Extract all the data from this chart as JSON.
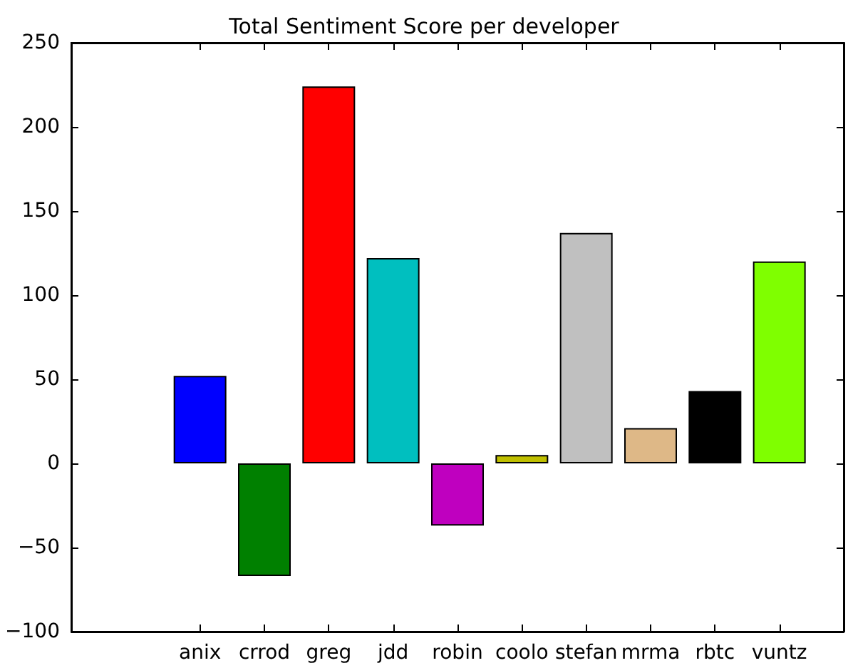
{
  "chart_data": {
    "type": "bar",
    "title": "Total Sentiment Score per developer",
    "categories": [
      null,
      null,
      "anix",
      "crrod",
      "greg",
      "jdd",
      "robin",
      "coolo",
      "stefan",
      "mrma",
      "rbtc",
      "vuntz",
      null
    ],
    "values": [
      null,
      null,
      52,
      -67,
      224,
      122,
      -37,
      5,
      137,
      21,
      43,
      120,
      null
    ],
    "colors": [
      null,
      null,
      "#0000ff",
      "#008000",
      "#ff0000",
      "#00bfbf",
      "#bf00bf",
      "#bfbf00",
      "#c0c0c0",
      "#deb887",
      "#000000",
      "#7fff00",
      null
    ],
    "ylim": [
      -100,
      250
    ],
    "yticks": [
      -100,
      -50,
      0,
      50,
      100,
      150,
      200,
      250
    ],
    "grid": false
  }
}
